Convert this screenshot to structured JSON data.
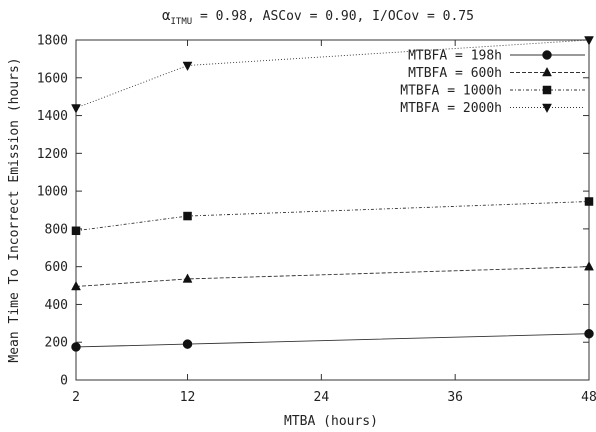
{
  "chart_data": {
    "type": "line",
    "title_prefix": "α",
    "title_subscript": "ITMU",
    "title_rest": " = 0.98, ASCov = 0.90, I/OCov = 0.75",
    "xlabel": "MTBA (hours)",
    "ylabel": "Mean Time To Incorrect Emission (hours)",
    "x_ticks": [
      2,
      12,
      24,
      36,
      48
    ],
    "y_ticks": [
      0,
      200,
      400,
      600,
      800,
      1000,
      1200,
      1400,
      1600,
      1800
    ],
    "xlim": [
      2,
      48
    ],
    "ylim": [
      0,
      1800
    ],
    "grid": false,
    "legend_position": "top-right",
    "x": [
      2,
      12,
      48
    ],
    "series": [
      {
        "name": "MTBFA = 198h",
        "values": [
          175,
          190,
          245
        ],
        "marker": "circle",
        "dash": "solid"
      },
      {
        "name": "MTBFA = 600h",
        "values": [
          495,
          535,
          600
        ],
        "marker": "triangle-up",
        "dash": "dashed"
      },
      {
        "name": "MTBFA = 1000h",
        "values": [
          790,
          868,
          945
        ],
        "marker": "square",
        "dash": "dotted-dashed"
      },
      {
        "name": "MTBFA = 2000h",
        "values": [
          1440,
          1665,
          1800
        ],
        "marker": "triangle-down",
        "dash": "dotted"
      }
    ]
  }
}
